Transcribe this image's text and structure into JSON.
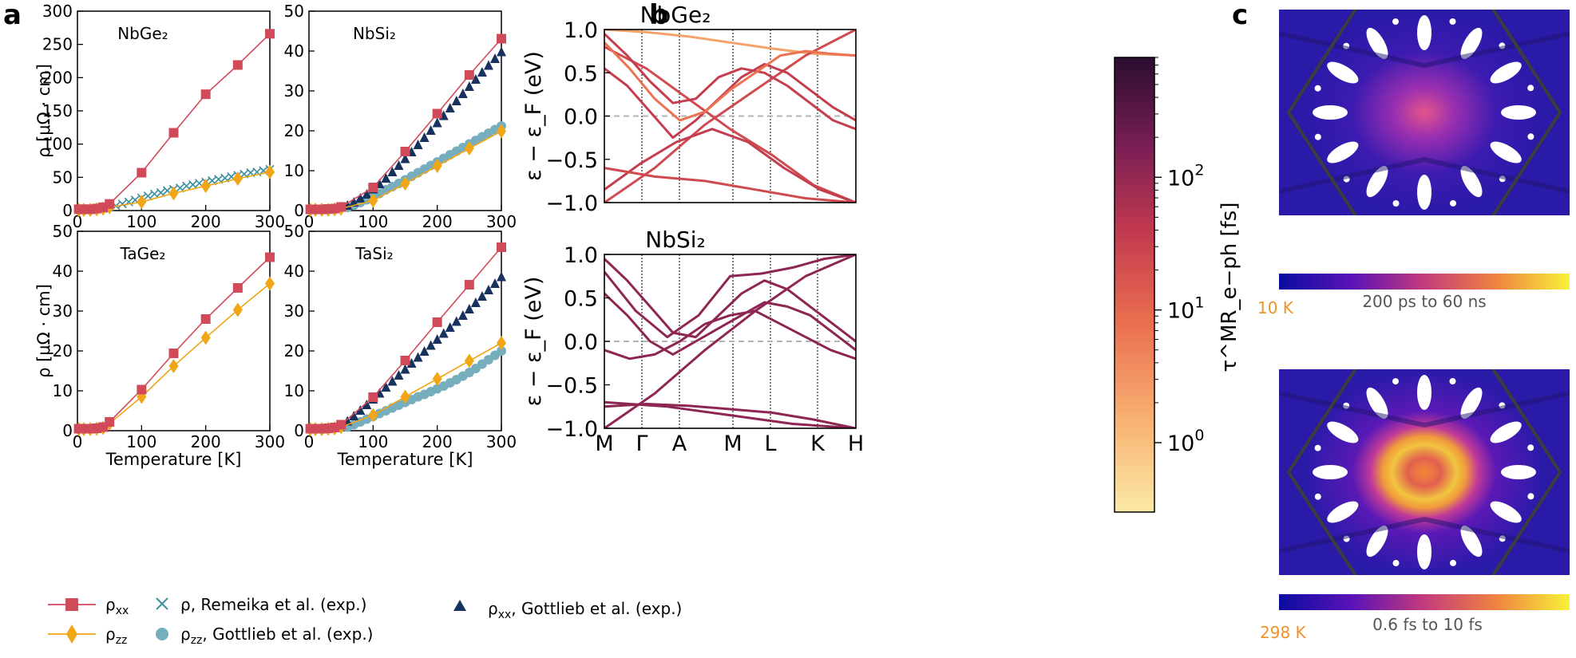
{
  "panels": {
    "a": "a",
    "b": "b",
    "c": "c"
  },
  "colors": {
    "rho_xx": "#d04a5a",
    "rho_zz": "#f0a616",
    "remeika": "#3a8fa0",
    "gottlieb_xx": "#17325f",
    "gottlieb_zz": "#77aebd",
    "temp_label": "#f0922a"
  },
  "chart_data": [
    {
      "id": "NbGe2",
      "type": "scatter",
      "title": "NbGe₂",
      "xlabel": "",
      "ylabel": "ρ [μΩ · cm]",
      "xlim": [
        0,
        300
      ],
      "ylim": [
        0,
        300
      ],
      "xticks": [
        0,
        100,
        200,
        300
      ],
      "yticks": [
        0,
        50,
        100,
        150,
        200,
        250,
        300
      ],
      "series": [
        {
          "name": "ρxx",
          "style": "sq",
          "x": [
            2,
            10,
            20,
            30,
            40,
            50,
            100,
            150,
            200,
            250,
            300
          ],
          "y": [
            2,
            2,
            2,
            3,
            5,
            10,
            57,
            117,
            175,
            219,
            266
          ]
        },
        {
          "name": "ρzz",
          "style": "dia",
          "x": [
            2,
            10,
            20,
            30,
            40,
            50,
            100,
            150,
            200,
            250,
            300
          ],
          "y": [
            1,
            1,
            1,
            2,
            3,
            5,
            13,
            26,
            37,
            48,
            58
          ]
        },
        {
          "name": "ρ, Remeika et al. (exp.)",
          "style": "cross",
          "x": [
            40,
            50,
            60,
            70,
            80,
            90,
            100,
            110,
            120,
            130,
            140,
            150,
            160,
            170,
            180,
            190,
            200,
            210,
            220,
            230,
            240,
            250,
            260,
            270,
            280,
            290,
            300
          ],
          "y": [
            3,
            5,
            7,
            10,
            13,
            16,
            19,
            22,
            25,
            27,
            30,
            32,
            34,
            37,
            39,
            41,
            43,
            45,
            47,
            49,
            51,
            53,
            55,
            57,
            58,
            60,
            62
          ]
        }
      ]
    },
    {
      "id": "NbSi2",
      "type": "scatter",
      "title": "NbSi₂",
      "xlabel": "",
      "ylabel": "",
      "xlim": [
        0,
        300
      ],
      "ylim": [
        0,
        50
      ],
      "xticks": [
        0,
        100,
        200,
        300
      ],
      "yticks": [
        0,
        10,
        20,
        30,
        40,
        50
      ],
      "series": [
        {
          "name": "ρxx",
          "style": "sq",
          "x": [
            2,
            10,
            20,
            30,
            40,
            50,
            100,
            150,
            200,
            250,
            300
          ],
          "y": [
            0.3,
            0.3,
            0.3,
            0.4,
            0.5,
            0.9,
            5.8,
            14.8,
            24.3,
            34.0,
            43.1
          ]
        },
        {
          "name": "ρzz",
          "style": "dia",
          "x": [
            2,
            10,
            20,
            30,
            40,
            50,
            100,
            150,
            200,
            250,
            300
          ],
          "y": [
            0.2,
            0.2,
            0.2,
            0.2,
            0.3,
            0.5,
            2.5,
            6.8,
            11.2,
            15.6,
            19.9
          ]
        },
        {
          "name": "ρxx, Gottlieb et al. (exp.)",
          "style": "tri",
          "x": [
            60,
            70,
            80,
            90,
            100,
            110,
            120,
            130,
            140,
            150,
            160,
            170,
            180,
            190,
            200,
            210,
            220,
            230,
            240,
            250,
            260,
            270,
            280,
            290,
            300
          ],
          "y": [
            1.2,
            2.0,
            3.0,
            4.0,
            5.3,
            6.6,
            8.0,
            9.6,
            11.2,
            12.9,
            14.6,
            16.4,
            18.2,
            20.0,
            21.9,
            23.7,
            25.6,
            27.4,
            29.2,
            31.0,
            32.8,
            34.6,
            36.3,
            38.0,
            39.7
          ]
        },
        {
          "name": "ρzz, Gottlieb et al. (exp.)",
          "style": "circ",
          "x": [
            60,
            70,
            80,
            90,
            100,
            110,
            120,
            130,
            140,
            150,
            160,
            170,
            180,
            190,
            200,
            210,
            220,
            230,
            240,
            250,
            260,
            270,
            280,
            290,
            300
          ],
          "y": [
            0.8,
            1.3,
            2.0,
            2.7,
            3.5,
            4.3,
            5.2,
            6.0,
            6.8,
            7.7,
            8.6,
            9.5,
            10.4,
            11.3,
            12.2,
            13.1,
            14.0,
            14.9,
            15.8,
            16.7,
            17.6,
            18.5,
            19.4,
            20.3,
            21.2
          ]
        }
      ]
    },
    {
      "id": "TaGe2",
      "type": "scatter",
      "title": "TaGe₂",
      "xlabel": "Temperature [K]",
      "ylabel": "ρ [μΩ · cm]",
      "xlim": [
        0,
        300
      ],
      "ylim": [
        0,
        50
      ],
      "xticks": [
        0,
        100,
        200,
        300
      ],
      "yticks": [
        0,
        10,
        20,
        30,
        40,
        50
      ],
      "series": [
        {
          "name": "ρxx",
          "style": "sq",
          "x": [
            2,
            10,
            20,
            30,
            40,
            50,
            100,
            150,
            200,
            250,
            300
          ],
          "y": [
            0.5,
            0.5,
            0.5,
            0.6,
            0.9,
            2.2,
            10.3,
            19.4,
            28.0,
            35.8,
            43.5
          ]
        },
        {
          "name": "ρzz",
          "style": "dia",
          "x": [
            2,
            10,
            20,
            30,
            40,
            50,
            100,
            150,
            200,
            250,
            300
          ],
          "y": [
            0.4,
            0.4,
            0.4,
            0.5,
            0.7,
            1.8,
            8.5,
            16.2,
            23.3,
            30.3,
            36.9
          ]
        }
      ]
    },
    {
      "id": "TaSi2",
      "type": "scatter",
      "title": "TaSi₂",
      "xlabel": "Temperature [K]",
      "ylabel": "",
      "xlim": [
        0,
        300
      ],
      "ylim": [
        0,
        50
      ],
      "xticks": [
        0,
        100,
        200,
        300
      ],
      "yticks": [
        0,
        10,
        20,
        30,
        40,
        50
      ],
      "series": [
        {
          "name": "ρxx",
          "style": "sq",
          "x": [
            2,
            10,
            20,
            30,
            40,
            50,
            100,
            150,
            200,
            250,
            300
          ],
          "y": [
            0.5,
            0.5,
            0.5,
            0.6,
            0.8,
            1.5,
            8.4,
            17.6,
            27.2,
            36.6,
            46.0
          ]
        },
        {
          "name": "ρzz",
          "style": "dia",
          "x": [
            2,
            10,
            20,
            30,
            40,
            50,
            100,
            150,
            200,
            250,
            300
          ],
          "y": [
            0.4,
            0.4,
            0.4,
            0.5,
            0.6,
            0.9,
            3.9,
            8.5,
            13.0,
            17.5,
            22.0
          ]
        },
        {
          "name": "ρxx, Gottlieb et al. (exp.)",
          "style": "tri",
          "x": [
            60,
            70,
            80,
            90,
            100,
            110,
            120,
            130,
            140,
            150,
            160,
            170,
            180,
            190,
            200,
            210,
            220,
            230,
            240,
            250,
            260,
            270,
            280,
            290,
            300
          ],
          "y": [
            2.3,
            3.6,
            5.0,
            6.4,
            7.8,
            9.3,
            10.8,
            12.3,
            13.8,
            15.3,
            16.8,
            18.3,
            19.8,
            21.3,
            22.8,
            24.3,
            25.8,
            27.3,
            28.8,
            30.4,
            32.0,
            33.6,
            35.2,
            36.8,
            38.5
          ]
        },
        {
          "name": "ρzz, Gottlieb et al. (exp.)",
          "style": "circ",
          "x": [
            60,
            70,
            80,
            90,
            100,
            110,
            120,
            130,
            140,
            150,
            160,
            170,
            180,
            190,
            200,
            210,
            220,
            230,
            240,
            250,
            260,
            270,
            280,
            290,
            300
          ],
          "y": [
            0.9,
            1.5,
            2.2,
            2.9,
            3.6,
            4.3,
            5.0,
            5.7,
            6.4,
            7.1,
            7.8,
            8.5,
            9.1,
            9.8,
            10.5,
            11.2,
            12.0,
            12.8,
            13.7,
            14.6,
            15.6,
            16.7,
            17.8,
            18.9,
            20.0
          ]
        }
      ]
    },
    {
      "id": "NbGe2_bands",
      "type": "line",
      "title": "NbGe₂",
      "ylabel": "ε − ε_F (eV)",
      "ylim": [
        -1.0,
        1.0
      ],
      "yticks": [
        "1.0",
        "0.5",
        "0.0",
        "−0.5",
        "−1.0"
      ],
      "kpath": [
        "M",
        "Γ",
        "A",
        "M",
        "L",
        "K",
        "H"
      ],
      "bands": [
        {
          "scale": 0.25,
          "y": [
            1.0,
            0.97,
            0.92,
            0.85,
            0.78,
            0.72,
            0.7
          ]
        },
        {
          "scale": 0.55,
          "y": [
            -1.0,
            -0.6,
            -0.1,
            0.3,
            0.7,
            1.0
          ]
        },
        {
          "scale": 0.55,
          "y": [
            0.8,
            0.55,
            0.2,
            -0.15,
            -0.45,
            -0.8,
            -1.0
          ]
        },
        {
          "scale": 0.6,
          "y": [
            0.55,
            0.35,
            0.05,
            -0.25,
            -0.05,
            0.2,
            0.45,
            0.6,
            0.5,
            0.3,
            0.1,
            -0.05
          ]
        },
        {
          "scale": 0.6,
          "y": [
            0.95,
            0.7,
            0.4,
            0.15,
            0.2,
            0.45,
            0.55,
            0.5,
            0.35,
            0.15,
            -0.05,
            -0.15
          ]
        },
        {
          "scale": 0.4,
          "y": [
            0.85,
            0.55,
            0.2,
            -0.05,
            0.05,
            0.3,
            0.5,
            0.7,
            0.75,
            0.72,
            0.7
          ]
        },
        {
          "scale": 0.6,
          "y": [
            -0.85,
            -0.55,
            -0.3,
            -0.15,
            -0.3,
            -0.6,
            -0.85,
            -1.0
          ]
        },
        {
          "scale": 0.55,
          "y": [
            -0.6,
            -0.7,
            -0.75,
            -0.85,
            -0.95,
            -1.0
          ]
        }
      ]
    },
    {
      "id": "NbSi2_bands",
      "type": "line",
      "title": "NbSi₂",
      "ylabel": "ε − ε_F (eV)",
      "ylim": [
        -1.0,
        1.0
      ],
      "yticks": [
        "1.0",
        "0.5",
        "0.0",
        "−0.5",
        "−1.0"
      ],
      "kpath": [
        "M",
        "Γ",
        "A",
        "M",
        "L",
        "K",
        "H"
      ],
      "bands": [
        {
          "scale": 0.75,
          "y": [
            0.8,
            0.35,
            0.05,
            0.3,
            0.75,
            0.78,
            0.85,
            0.95,
            1.0
          ]
        },
        {
          "scale": 0.75,
          "y": [
            -1.0,
            -0.6,
            -0.1,
            0.35,
            0.75,
            1.0
          ]
        },
        {
          "scale": 0.75,
          "y": [
            0.95,
            0.7,
            0.4,
            0.1,
            0.05,
            0.3,
            0.55,
            0.7,
            0.6,
            0.4,
            0.2,
            0.0
          ]
        },
        {
          "scale": 0.75,
          "y": [
            0.55,
            0.3,
            0.0,
            -0.15,
            0.0,
            0.15,
            0.3,
            0.45,
            0.4,
            0.3,
            0.1,
            -0.1
          ]
        },
        {
          "scale": 0.75,
          "y": [
            -0.1,
            -0.2,
            -0.15,
            0.0,
            0.2,
            0.3,
            0.35,
            0.2,
            0.05,
            -0.1,
            -0.2
          ]
        },
        {
          "scale": 0.75,
          "y": [
            -0.7,
            -0.75,
            -0.85,
            -0.95,
            -1.0
          ]
        },
        {
          "scale": 0.75,
          "y": [
            -0.75,
            -0.72,
            -0.74,
            -0.78,
            -0.82,
            -0.9,
            -1.0
          ]
        }
      ]
    },
    {
      "id": "colorbar",
      "type": "heatmap",
      "scale": "log",
      "label": "τ^MR_e−ph [fs]",
      "tick_labels": [
        {
          "base": "10",
          "exp": "2",
          "value": 100
        },
        {
          "base": "10",
          "exp": "1",
          "value": 10
        },
        {
          "base": "10",
          "exp": "0",
          "value": 1
        }
      ],
      "range_min_fs": 0.3,
      "range_max_fs": 800
    }
  ],
  "legend": {
    "rho_xx": {
      "sym": "ρ",
      "sub": "xx",
      "rest": ""
    },
    "rho_zz": {
      "sym": "ρ",
      "sub": "zz",
      "rest": ""
    },
    "remeika": {
      "sym": "ρ",
      "sub": "",
      "rest": ", Remeika et al. (exp.)"
    },
    "gottlieb_zz": {
      "sym": "ρ",
      "sub": "zz",
      "rest": ", Gottlieb et al. (exp.)"
    },
    "gottlieb_xx": {
      "sym": "ρ",
      "sub": "xx",
      "rest": ", Gottlieb et al. (exp.)"
    }
  },
  "fermi_surfaces": [
    {
      "temperature": "10 K",
      "range": "200 ps to 60 ns",
      "hotspot": "center"
    },
    {
      "temperature": "298 K",
      "range": "0.6 fs to 10 fs",
      "hotspot": "ring"
    }
  ]
}
